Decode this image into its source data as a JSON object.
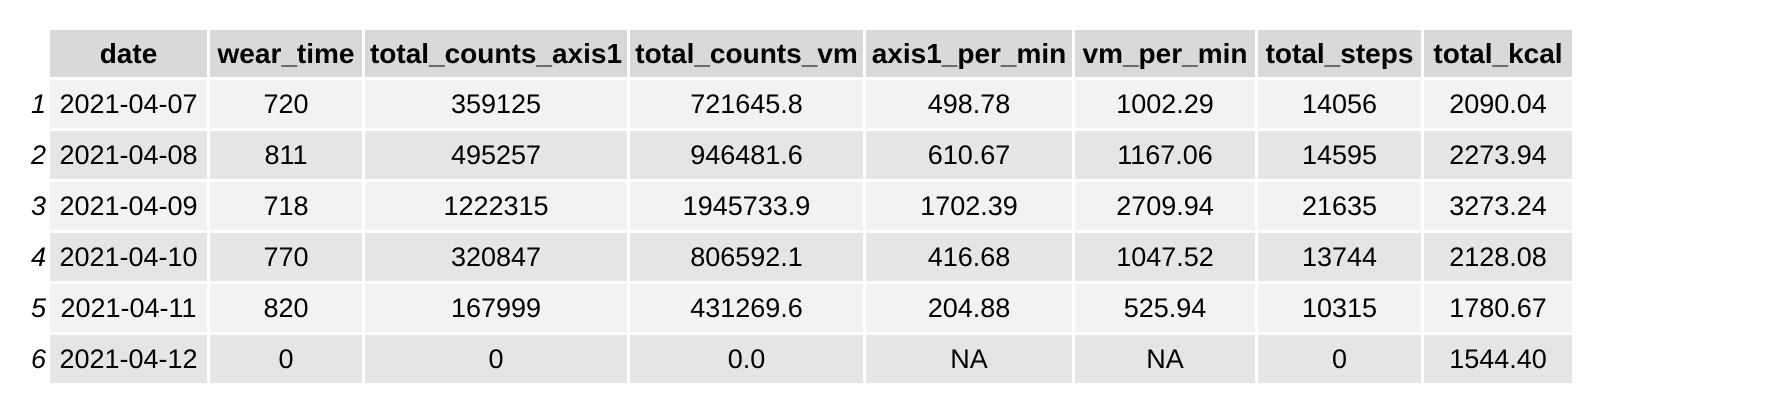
{
  "table": {
    "columns": [
      "date",
      "wear_time",
      "total_counts_axis1",
      "total_counts_vm",
      "axis1_per_min",
      "vm_per_min",
      "total_steps",
      "total_kcal"
    ],
    "rows": [
      {
        "index": "1",
        "cells": [
          "2021-04-07",
          "720",
          "359125",
          "721645.8",
          "498.78",
          "1002.29",
          "14056",
          "2090.04"
        ]
      },
      {
        "index": "2",
        "cells": [
          "2021-04-08",
          "811",
          "495257",
          "946481.6",
          "610.67",
          "1167.06",
          "14595",
          "2273.94"
        ]
      },
      {
        "index": "3",
        "cells": [
          "2021-04-09",
          "718",
          "1222315",
          "1945733.9",
          "1702.39",
          "2709.94",
          "21635",
          "3273.24"
        ]
      },
      {
        "index": "4",
        "cells": [
          "2021-04-10",
          "770",
          "320847",
          "806592.1",
          "416.68",
          "1047.52",
          "13744",
          "2128.08"
        ]
      },
      {
        "index": "5",
        "cells": [
          "2021-04-11",
          "820",
          "167999",
          "431269.6",
          "204.88",
          "525.94",
          "10315",
          "1780.67"
        ]
      },
      {
        "index": "6",
        "cells": [
          "2021-04-12",
          "0",
          "0",
          "0.0",
          "NA",
          "NA",
          "0",
          "1544.40"
        ]
      }
    ]
  }
}
